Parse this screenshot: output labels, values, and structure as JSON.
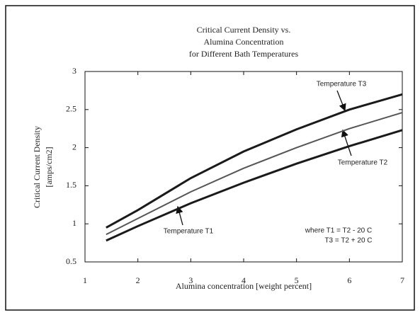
{
  "chart_data": {
    "type": "line",
    "title": [
      "Critical Current Density vs.",
      "Alumina Concentration",
      "for Different Bath Temperatures"
    ],
    "y_label": [
      "Critical Current Density",
      "[amps/cm2]"
    ],
    "x_label": "Alumina concentration  [weight percent]",
    "x": [
      1.4,
      2,
      3,
      4,
      5,
      6,
      7
    ],
    "series": [
      {
        "name": "Temperature T3",
        "color": "#1a1a1a",
        "values": [
          0.95,
          1.18,
          1.6,
          1.95,
          2.24,
          2.5,
          2.7
        ]
      },
      {
        "name": "Temperature T2",
        "color": "#555555",
        "values": [
          0.86,
          1.07,
          1.42,
          1.73,
          2.0,
          2.25,
          2.46
        ]
      },
      {
        "name": "Temperature T1",
        "color": "#1a1a1a",
        "values": [
          0.78,
          0.97,
          1.27,
          1.54,
          1.79,
          2.02,
          2.23
        ]
      }
    ],
    "notes": [
      "where T1 = T2 - 20 C",
      "T3 = T2 + 20 C"
    ],
    "xlim": [
      1,
      7
    ],
    "xticks": [
      1,
      2,
      3,
      4,
      5,
      6,
      7
    ],
    "ylim": [
      0.5,
      3
    ],
    "yticks": [
      0.5,
      1,
      1.5,
      2,
      2.5,
      3
    ],
    "grid": false
  }
}
